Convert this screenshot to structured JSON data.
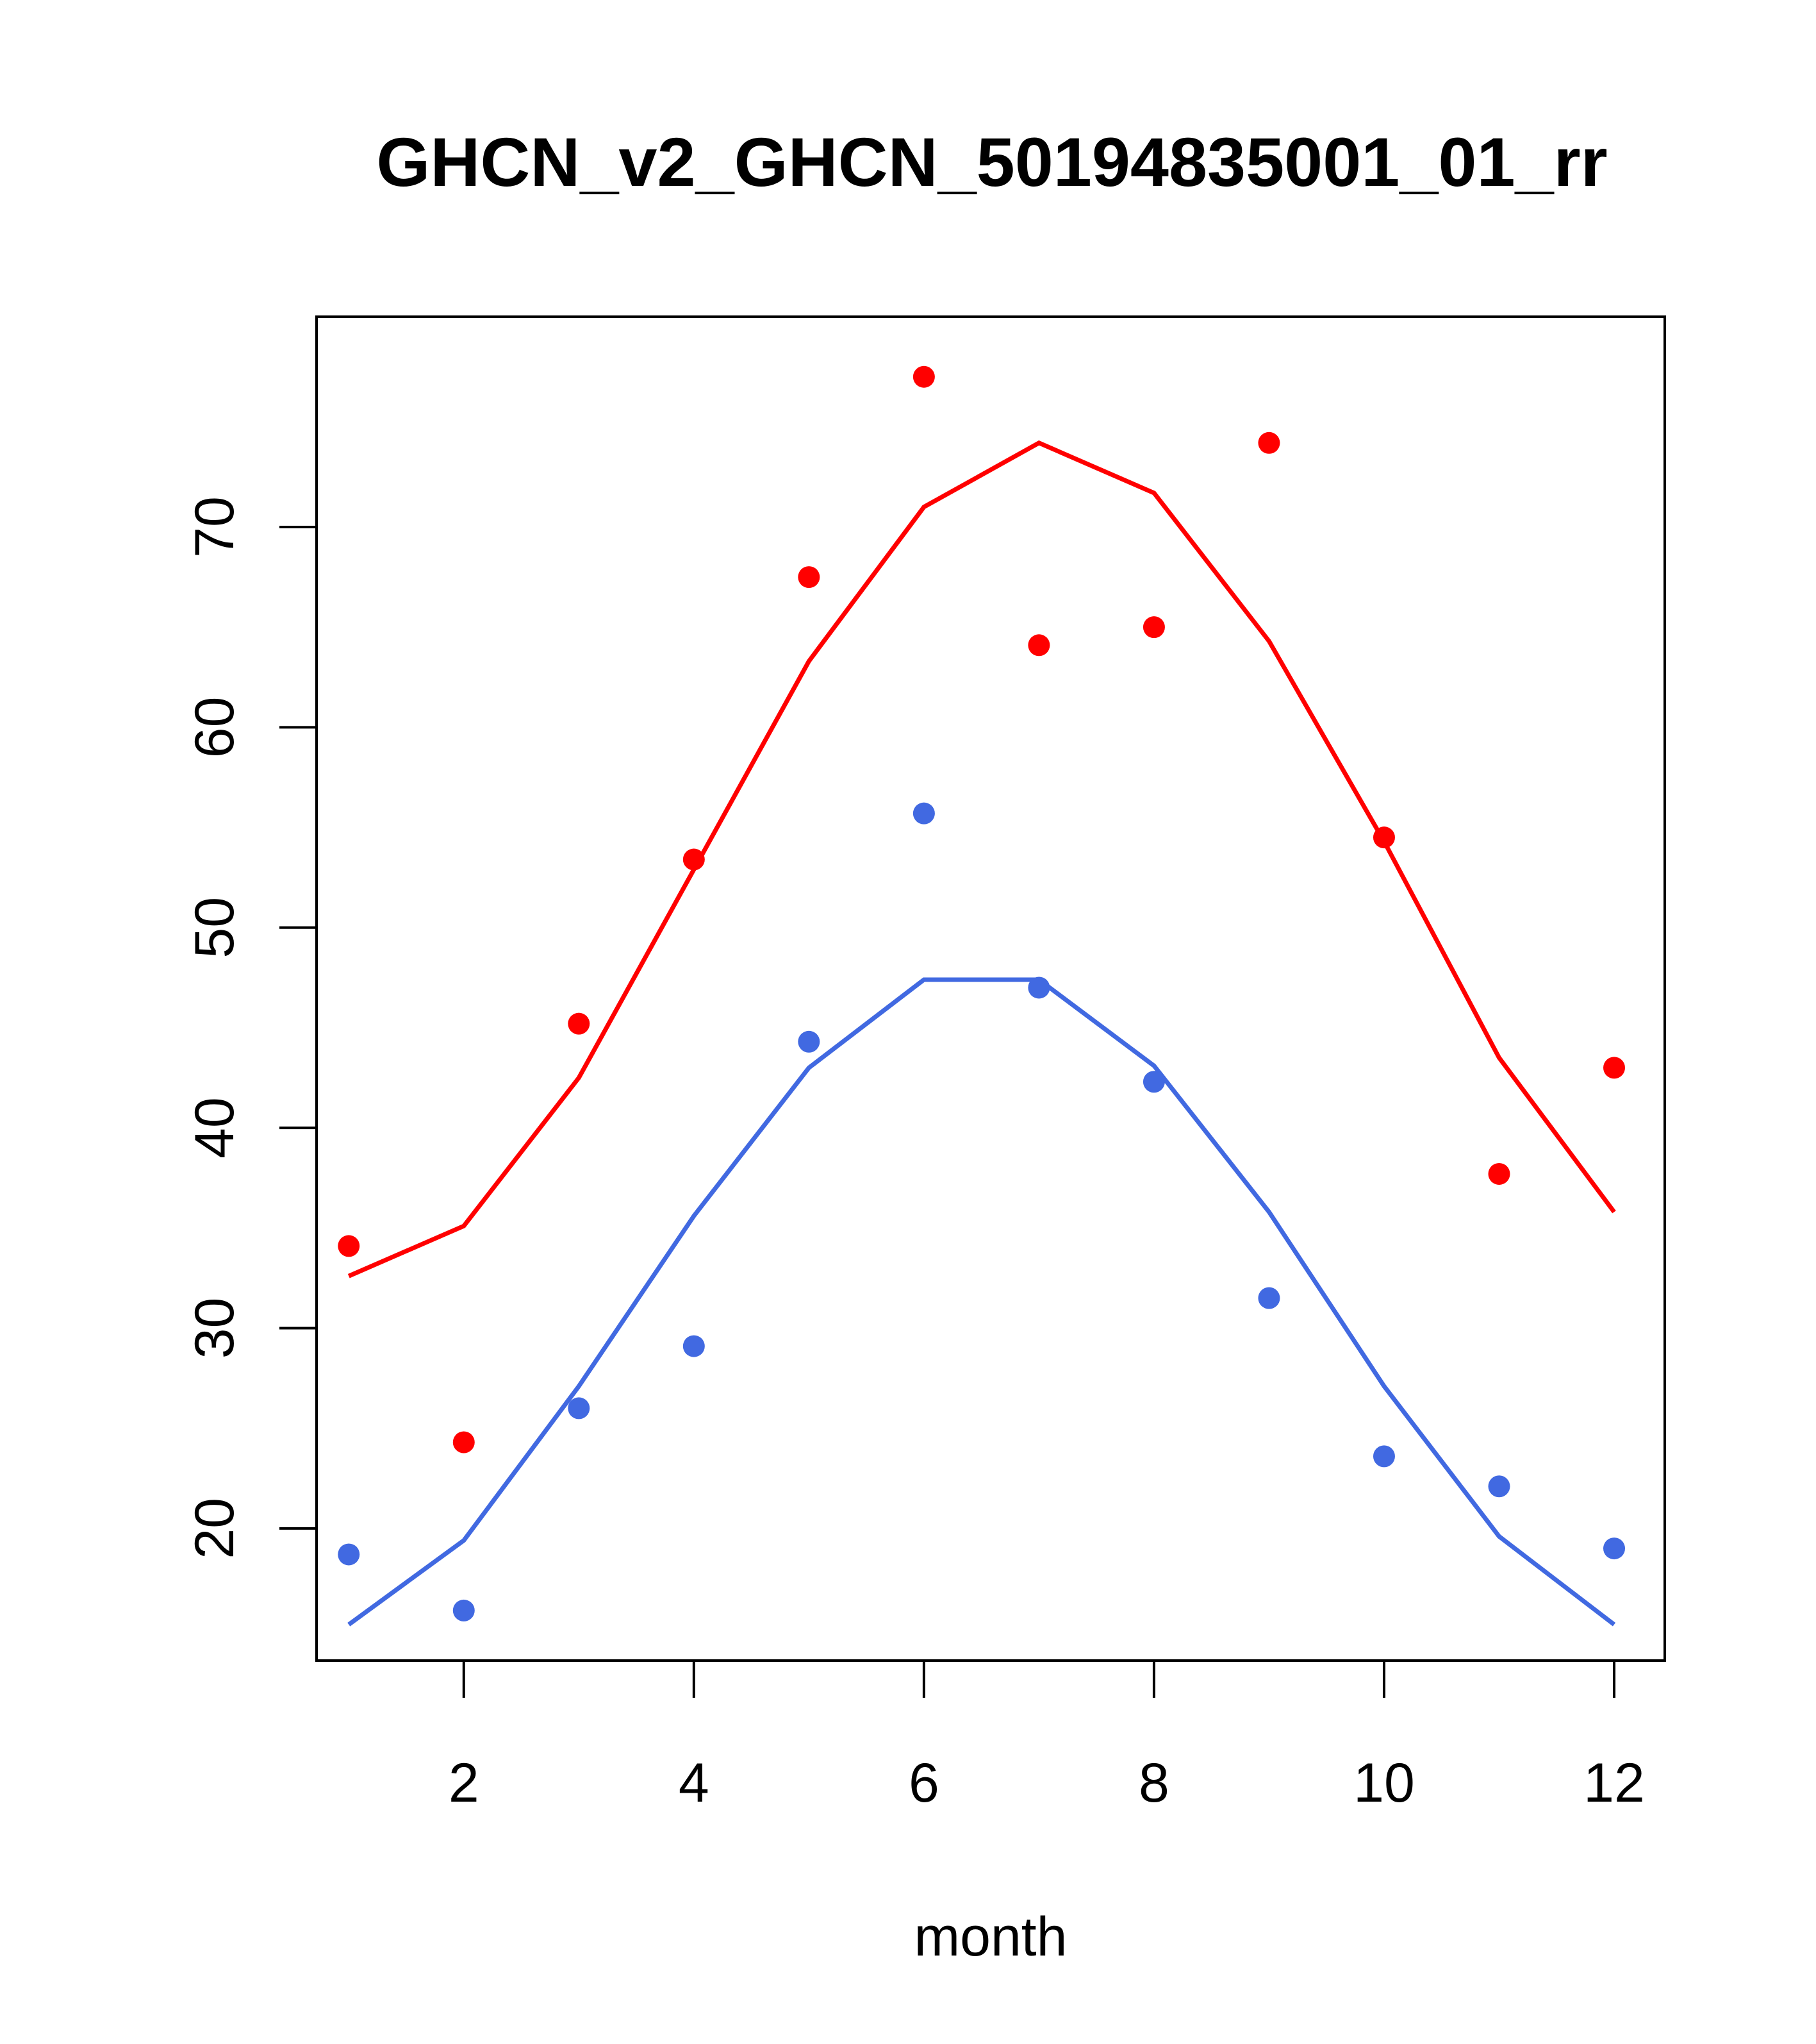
{
  "chart_data": {
    "type": "scatter",
    "title": "GHCN_v2_GHCN_50194835001_01_rr",
    "xlabel": "month",
    "ylabel": "",
    "xlim": [
      0.72,
      12.44
    ],
    "ylim": [
      13.4,
      80.5
    ],
    "x_ticks": [
      2,
      4,
      6,
      8,
      10,
      12
    ],
    "y_ticks": [
      20,
      30,
      40,
      50,
      60,
      70
    ],
    "grid": false,
    "series": [
      {
        "color": "#ff0000",
        "x": [
          1,
          2,
          3,
          4,
          5,
          6,
          7,
          8,
          9,
          10,
          11,
          12
        ],
        "points": [
          34.1,
          24.3,
          45.2,
          53.4,
          67.5,
          77.5,
          64.1,
          65.0,
          74.2,
          54.5,
          37.7,
          43.0
        ],
        "line": [
          32.6,
          35.1,
          42.5,
          52.9,
          63.3,
          71.0,
          74.2,
          71.7,
          64.3,
          54.3,
          43.5,
          35.8
        ]
      },
      {
        "color": "#4169e1",
        "x": [
          1,
          2,
          3,
          4,
          5,
          6,
          7,
          8,
          9,
          10,
          11,
          12
        ],
        "points": [
          18.7,
          15.9,
          26.0,
          29.1,
          44.3,
          55.7,
          47.0,
          42.3,
          31.5,
          23.6,
          22.1,
          19.0
        ],
        "line": [
          15.2,
          19.4,
          27.1,
          35.6,
          43.0,
          47.4,
          47.4,
          43.1,
          35.8,
          27.1,
          19.6,
          15.2
        ]
      }
    ]
  }
}
